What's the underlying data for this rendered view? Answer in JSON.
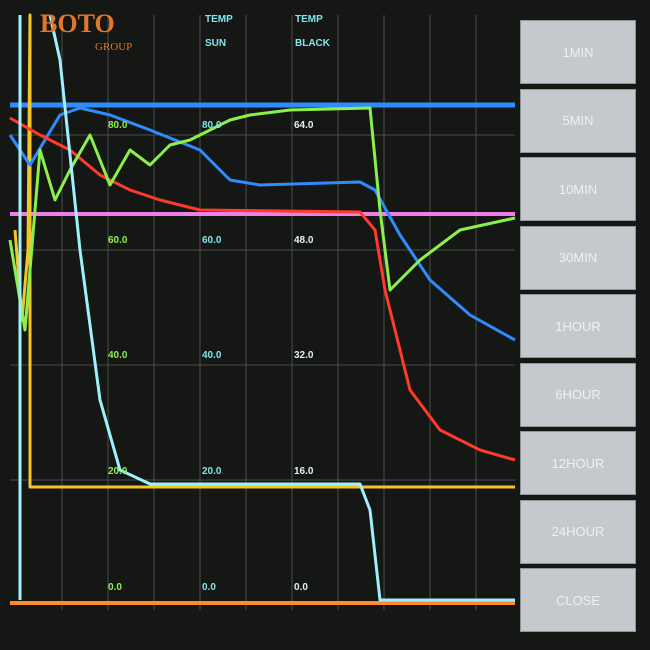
{
  "logo": {
    "brand": "BOTO",
    "group": "GROUP"
  },
  "headers": [
    {
      "line1": "TEMP",
      "line2": "SUN"
    },
    {
      "line1": "TEMP",
      "line2": "BLACK"
    }
  ],
  "scales": [
    {
      "labels": [
        "80.0",
        "60.0",
        "40.0",
        "20.0",
        "0.0"
      ]
    },
    {
      "labels": [
        "80.0",
        "60.0",
        "40.0",
        "20.0",
        "0.0"
      ]
    },
    {
      "labels": [
        "64.0",
        "48.0",
        "32.0",
        "16.0",
        "0.0"
      ]
    }
  ],
  "buttons": [
    "1MIN",
    "5MIN",
    "10MIN",
    "30MIN",
    "1HOUR",
    "6HOUR",
    "12HOUR",
    "24HOUR",
    "CLOSE"
  ]
}
